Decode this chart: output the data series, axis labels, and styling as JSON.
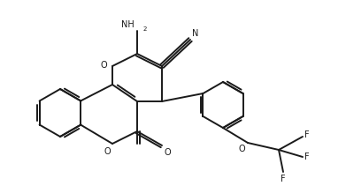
{
  "bg_color": "#ffffff",
  "line_color": "#1a1a1a",
  "lw": 1.4,
  "figsize": [
    3.91,
    2.11
  ],
  "dpi": 100,
  "text_color": "#1a1a1a",
  "nh2_label": "NH",
  "nh2_sub": "2",
  "n_label": "N",
  "o_label": "O",
  "f_labels": [
    "F",
    "F",
    "F"
  ]
}
